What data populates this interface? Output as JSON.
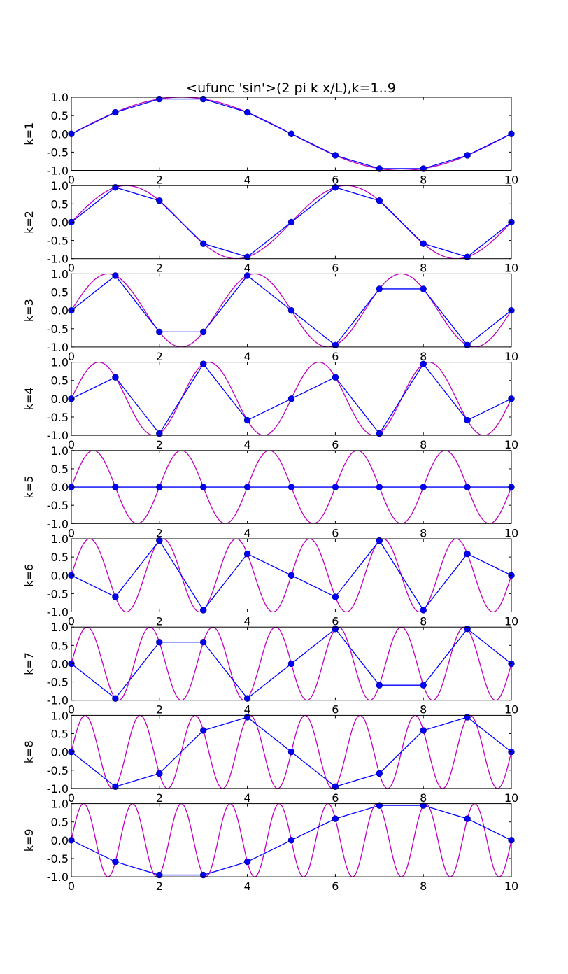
{
  "title": "<ufunc 'sin'>(2 pi k x/L),k=1..9",
  "colors": {
    "continuous": "#bf00bf",
    "sampled": "#0000ff",
    "axes": "#000000"
  },
  "chart_data": {
    "type": "line",
    "layout": "9 vertically stacked subplots sharing the same axes ranges",
    "title": "<ufunc 'sin'>(2 pi k x/L),k=1..9",
    "x_ticks": [
      "0",
      "2",
      "4",
      "6",
      "8",
      "10"
    ],
    "y_ticks": [
      "1.0",
      "0.5",
      "0.0",
      "-0.5",
      "-1.0"
    ],
    "xlim": [
      0,
      10
    ],
    "ylim": [
      -1,
      1
    ],
    "grid": false,
    "L": 10,
    "continuous_curve": "y = sin(2*pi*k*x/L) drawn as a smooth magenta line",
    "sample_x": [
      0,
      1,
      2,
      3,
      4,
      5,
      6,
      7,
      8,
      9,
      10
    ],
    "subplots": [
      {
        "ylabel": "k=1",
        "k": 1,
        "samples": [
          0.0,
          0.588,
          0.951,
          0.951,
          0.588,
          0.0,
          -0.588,
          -0.951,
          -0.951,
          -0.588,
          0.0
        ]
      },
      {
        "ylabel": "k=2",
        "k": 2,
        "samples": [
          0.0,
          0.951,
          0.588,
          -0.588,
          -0.951,
          0.0,
          0.951,
          0.588,
          -0.588,
          -0.951,
          0.0
        ]
      },
      {
        "ylabel": "k=3",
        "k": 3,
        "samples": [
          0.0,
          0.951,
          -0.588,
          -0.588,
          0.951,
          0.0,
          -0.951,
          0.588,
          0.588,
          -0.951,
          0.0
        ]
      },
      {
        "ylabel": "k=4",
        "k": 4,
        "samples": [
          0.0,
          0.588,
          -0.951,
          0.951,
          -0.588,
          0.0,
          0.588,
          -0.951,
          0.951,
          -0.588,
          0.0
        ]
      },
      {
        "ylabel": "k=5",
        "k": 5,
        "samples": [
          0.0,
          0.0,
          0.0,
          0.0,
          0.0,
          0.0,
          0.0,
          0.0,
          0.0,
          0.0,
          0.0
        ]
      },
      {
        "ylabel": "k=6",
        "k": 6,
        "samples": [
          0.0,
          -0.588,
          0.951,
          -0.951,
          0.588,
          0.0,
          -0.588,
          0.951,
          -0.951,
          0.588,
          0.0
        ]
      },
      {
        "ylabel": "k=7",
        "k": 7,
        "samples": [
          0.0,
          -0.951,
          0.588,
          0.588,
          -0.951,
          0.0,
          0.951,
          -0.588,
          -0.588,
          0.951,
          0.0
        ]
      },
      {
        "ylabel": "k=8",
        "k": 8,
        "samples": [
          0.0,
          -0.951,
          -0.588,
          0.588,
          0.951,
          0.0,
          -0.951,
          -0.588,
          0.588,
          0.951,
          0.0
        ]
      },
      {
        "ylabel": "k=9",
        "k": 9,
        "samples": [
          0.0,
          -0.588,
          -0.951,
          -0.951,
          -0.588,
          0.0,
          0.588,
          0.951,
          0.951,
          0.588,
          0.0
        ]
      }
    ]
  }
}
